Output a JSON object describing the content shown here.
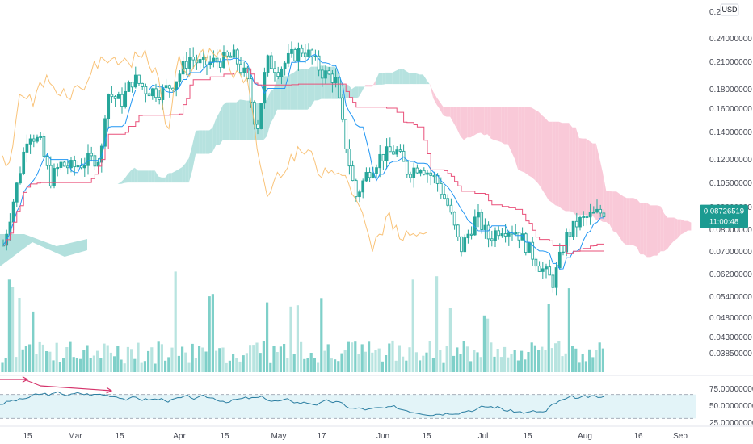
{
  "currency_badge": "USD",
  "last_price_label": "0.08726519",
  "countdown_label": "11:00:48",
  "colors": {
    "candle": "#26a69a",
    "volume": "#7fd0c9",
    "volume_light": "#b8e4e0",
    "tenkan": "#2196f3",
    "kijun": "#e9517a",
    "chikou": "#f8b861",
    "cloud_bull": "#b2e0dd",
    "cloud_bear": "#f9c6d6",
    "rsi_line": "#2b7ea1",
    "rsi_band": "#e3f4f8",
    "divergence": "#d5336b",
    "price_tag": "#1c9b91"
  },
  "chart_data": [
    {
      "type": "candlestick",
      "x_axis_labels": [
        "15",
        "Mar",
        "15",
        "Apr",
        "15",
        "May",
        "17",
        "Jun",
        "15",
        "Jul",
        "15",
        "Aug",
        "16",
        "Sep"
      ],
      "y_axis_labels": [
        "0.21",
        "0.24000000",
        "0.21000000",
        "0.18000000",
        "0.16000000",
        "0.14000000",
        "0.12000000",
        "0.10500000",
        "0.09000000",
        "0.08000000",
        "0.07000000",
        "0.06200000",
        "0.05400000",
        "0.04800000",
        "0.04300000",
        "0.03850000"
      ],
      "y_scale": "log",
      "indicators": [
        "Ichimoku Cloud",
        "Volume",
        "RSI"
      ],
      "last_price": 0.08726519,
      "grid": false
    },
    {
      "type": "line",
      "name": "RSI",
      "y_axis_labels": [
        "75.00000000",
        "50.00000000",
        "25.00000000"
      ],
      "band": [
        30,
        70
      ],
      "last_value": 63
    }
  ]
}
